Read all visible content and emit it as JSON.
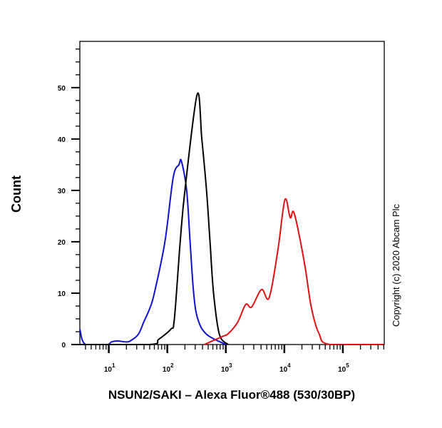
{
  "chart_data": {
    "type": "line",
    "title": "",
    "xlabel": "NSUN2/SAKI – Alexa Fluor®488 (530/30BP)",
    "ylabel": "Count",
    "x_scale": "log",
    "xlim": [
      3.2,
      510000
    ],
    "ylim": [
      0,
      59
    ],
    "x_ticks": [
      {
        "base": "10",
        "exp": "1",
        "value": 10
      },
      {
        "base": "10",
        "exp": "2",
        "value": 100
      },
      {
        "base": "10",
        "exp": "3",
        "value": 1000
      },
      {
        "base": "10",
        "exp": "4",
        "value": 10000
      },
      {
        "base": "10",
        "exp": "5",
        "value": 100000
      }
    ],
    "y_ticks": [
      "0",
      "10",
      "20",
      "30",
      "40",
      "50"
    ],
    "y_tick_values": [
      0,
      10,
      20,
      30,
      40,
      50
    ],
    "grid": false,
    "annotation": "Copyright (c) 2020 Abcam Plc",
    "series": [
      {
        "color": "#1010d0",
        "x": [
          3.2,
          4,
          9.3,
          11,
          14,
          20,
          24,
          32,
          40,
          50,
          60,
          91,
          126,
          158,
          174,
          214,
          245,
          282,
          331,
          468,
          1000
        ],
        "y": [
          3,
          0,
          0,
          0.5,
          0.7,
          0.5,
          0.8,
          2,
          4.5,
          7,
          10,
          20,
          32.5,
          35,
          35.7,
          30,
          20,
          10,
          5,
          2,
          0
        ]
      },
      {
        "color": "#000000",
        "x": [
          3.2,
          50,
          71,
          115,
          132,
          166,
          200,
          324,
          389,
          468,
          537,
          617,
          776,
          1096
        ],
        "y": [
          0,
          0,
          1,
          3,
          5,
          20,
          30,
          48.7,
          40,
          30,
          20,
          10,
          2,
          0
        ]
      },
      {
        "color": "#e01010",
        "x": [
          427,
          891,
          1096,
          1585,
          2188,
          2754,
          4074,
          5495,
          7762,
          10233,
          12589,
          14791,
          21878,
          28840,
          38905,
          60256,
          510000
        ],
        "y": [
          0,
          1.6,
          2.1,
          4.3,
          7.8,
          7.3,
          10.7,
          9.1,
          18.4,
          28.2,
          24.7,
          25.5,
          16.1,
          7.3,
          2.2,
          0,
          0
        ]
      }
    ]
  }
}
